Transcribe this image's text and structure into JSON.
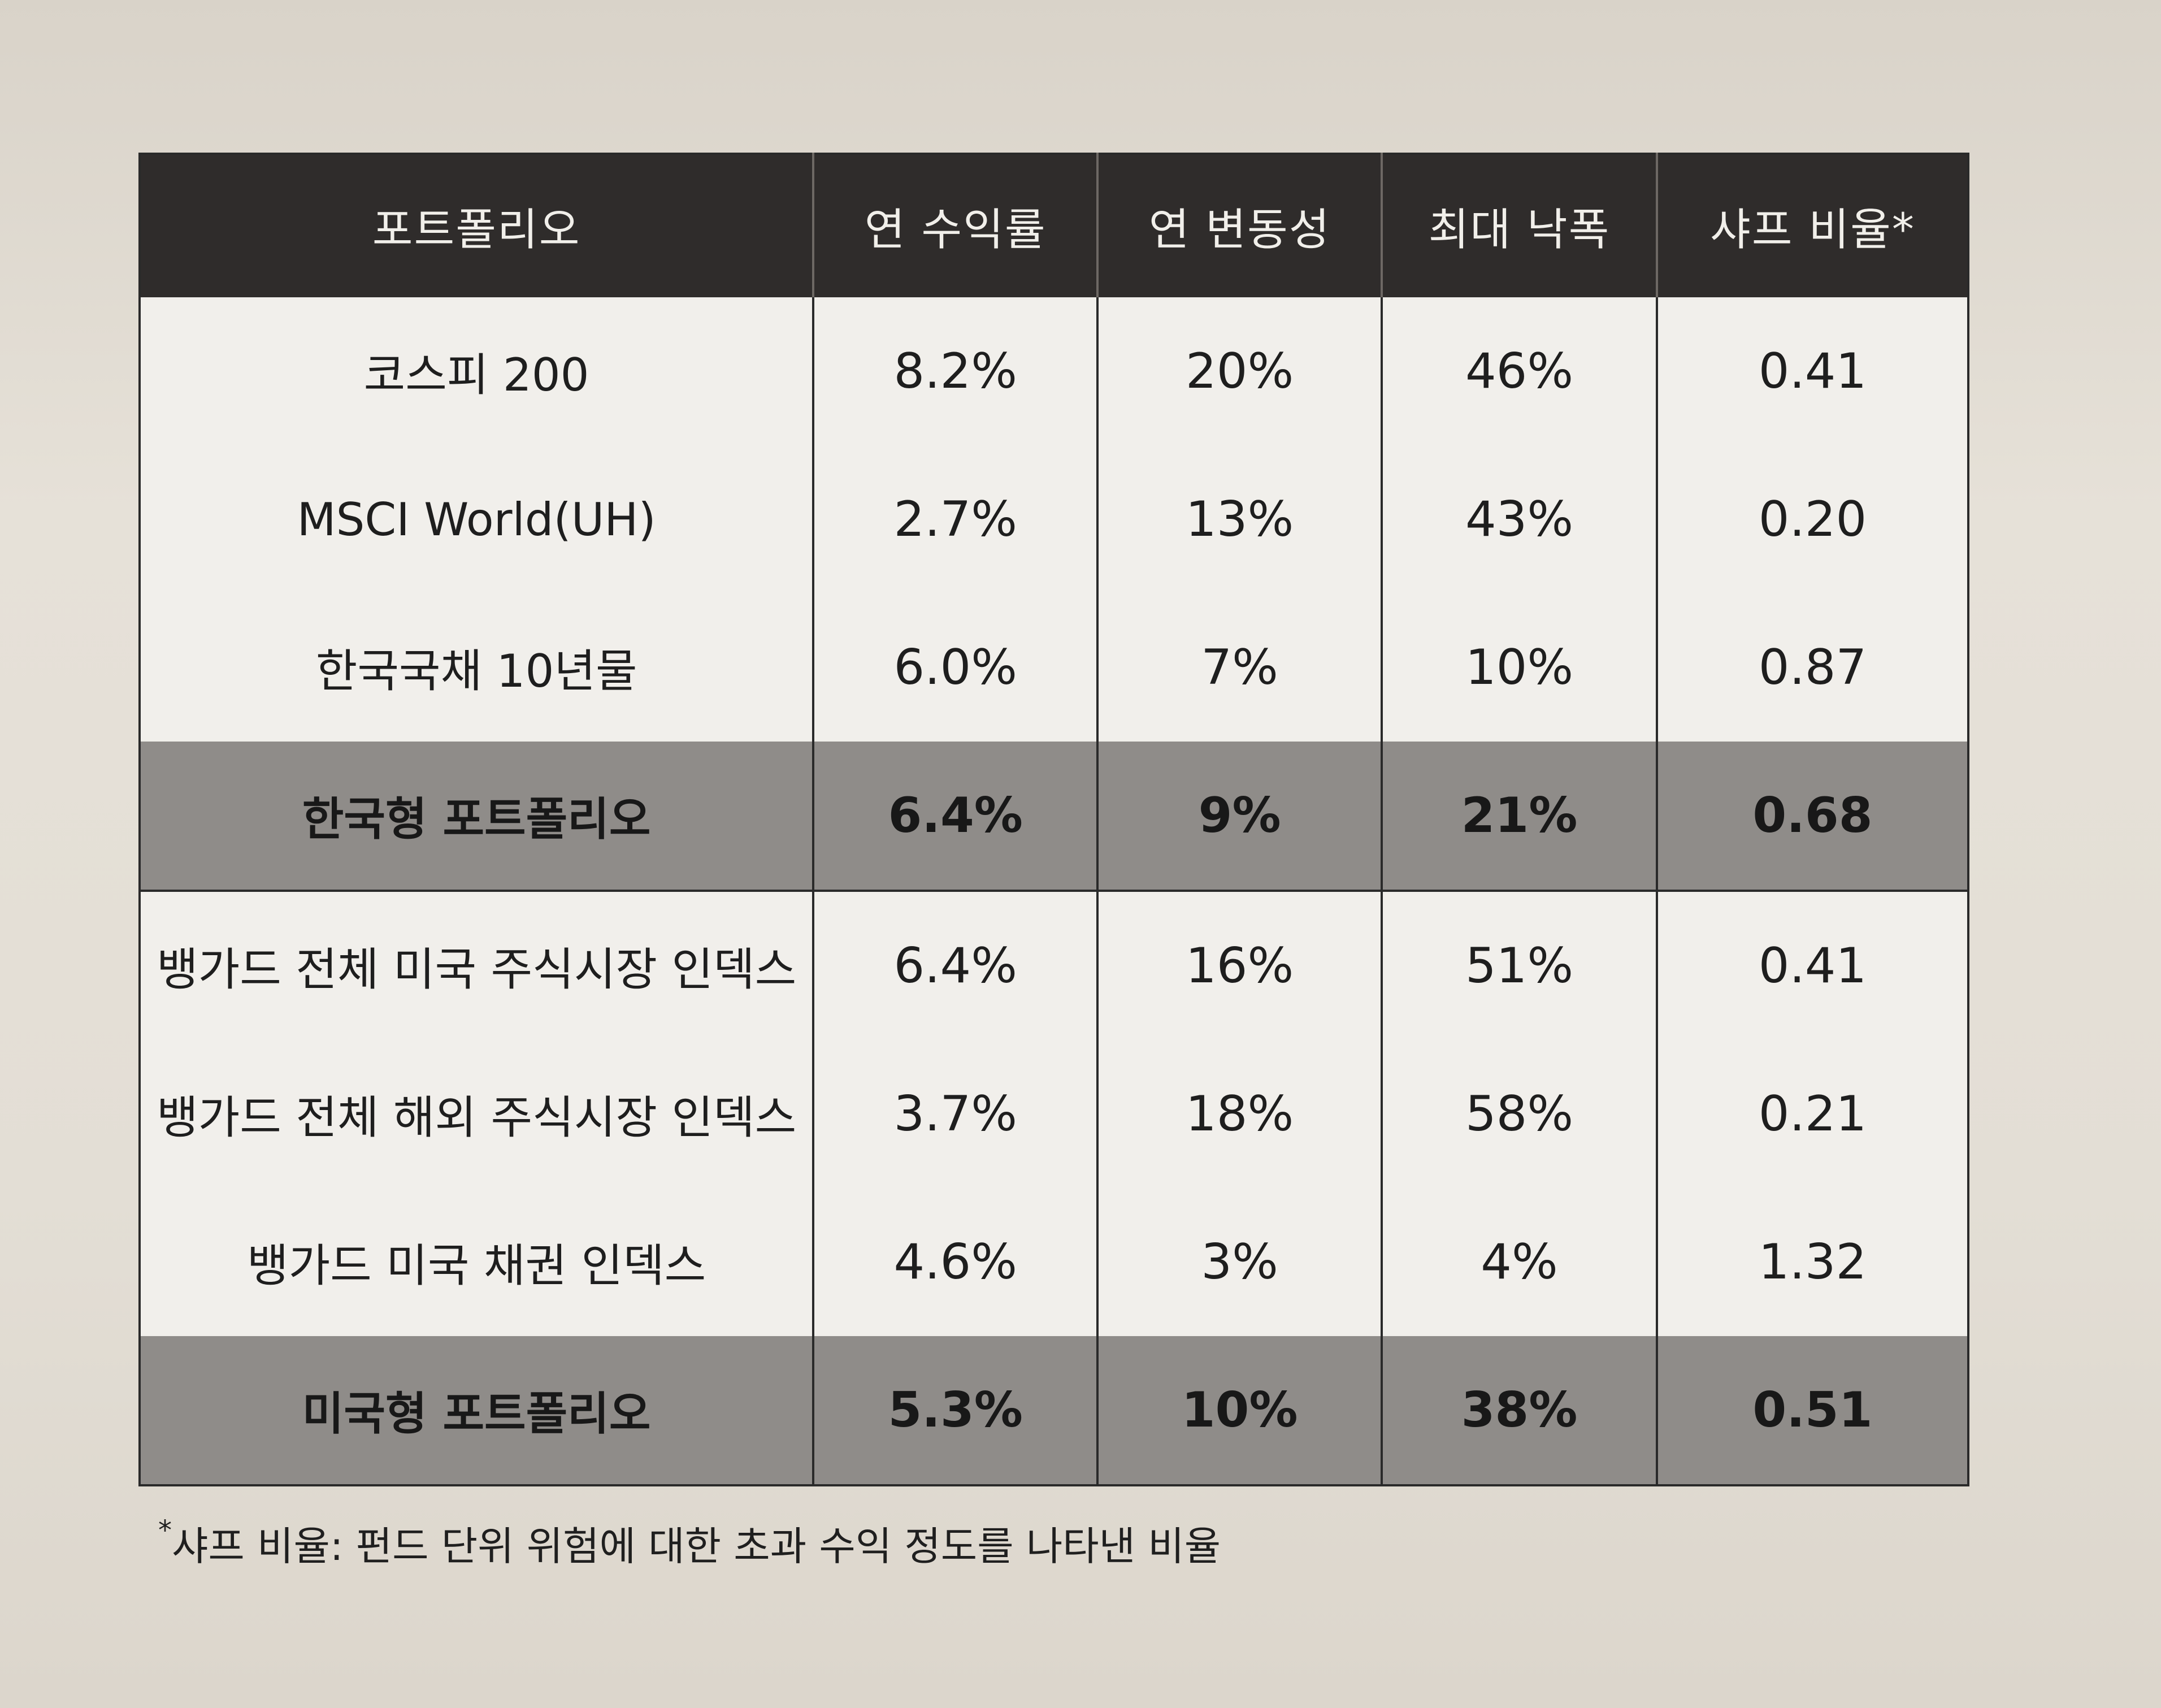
{
  "table": {
    "headers": [
      "포트폴리오",
      "연 수익률",
      "연 변동성",
      "최대 낙폭",
      "샤프 비율*"
    ],
    "rows": [
      {
        "name": "코스피 200",
        "return": "8.2%",
        "volatility": "20%",
        "drawdown": "46%",
        "sharpe": "0.41",
        "summary": false
      },
      {
        "name": "MSCI World(UH)",
        "return": "2.7%",
        "volatility": "13%",
        "drawdown": "43%",
        "sharpe": "0.20",
        "summary": false
      },
      {
        "name": "한국국채 10년물",
        "return": "6.0%",
        "volatility": "7%",
        "drawdown": "10%",
        "sharpe": "0.87",
        "summary": false
      },
      {
        "name": "한국형 포트폴리오",
        "return": "6.4%",
        "volatility": "9%",
        "drawdown": "21%",
        "sharpe": "0.68",
        "summary": true
      },
      {
        "name": "뱅가드 전체 미국 주식시장 인덱스",
        "return": "6.4%",
        "volatility": "16%",
        "drawdown": "51%",
        "sharpe": "0.41",
        "summary": false
      },
      {
        "name": "뱅가드 전체 해외 주식시장 인덱스",
        "return": "3.7%",
        "volatility": "18%",
        "drawdown": "58%",
        "sharpe": "0.21",
        "summary": false
      },
      {
        "name": "뱅가드 미국 채권 인덱스",
        "return": "4.6%",
        "volatility": "3%",
        "drawdown": "4%",
        "sharpe": "1.32",
        "summary": false
      },
      {
        "name": "미국형 포트폴리오",
        "return": "5.3%",
        "volatility": "10%",
        "drawdown": "38%",
        "sharpe": "0.51",
        "summary": true
      }
    ]
  },
  "footnote": {
    "marker": "*",
    "text": "샤프 비율: 펀드 단위 위험에 대한 초과 수익 정도를 나타낸 비율"
  }
}
